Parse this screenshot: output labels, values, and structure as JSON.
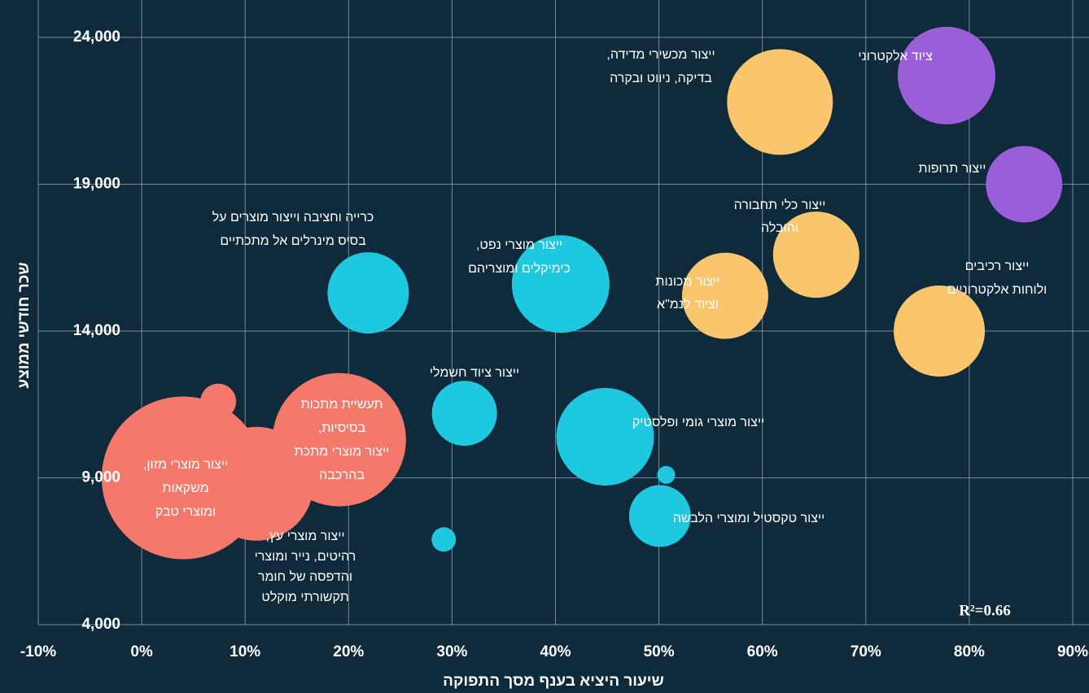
{
  "chart_data": {
    "type": "bubble",
    "x_label": "שיעור היציא בענף מסך התפוקה",
    "y_label": "שכר חודשי ממוצע",
    "annotation": "R²=0.66",
    "xlim": [
      -10,
      90
    ],
    "xticks": [
      {
        "value": -10,
        "label": "-10%"
      },
      {
        "value": 0,
        "label": "0%"
      },
      {
        "value": 10,
        "label": "10%"
      },
      {
        "value": 20,
        "label": "20%"
      },
      {
        "value": 30,
        "label": "30%"
      },
      {
        "value": 40,
        "label": "40%"
      },
      {
        "value": 50,
        "label": "50%"
      },
      {
        "value": 60,
        "label": "60%"
      },
      {
        "value": 70,
        "label": "70%"
      },
      {
        "value": 80,
        "label": "80%"
      },
      {
        "value": 90,
        "label": "90%"
      }
    ],
    "ylim": [
      4000,
      24000
    ],
    "yticks": [
      {
        "value": 4000,
        "label": "4,000"
      },
      {
        "value": 9000,
        "label": "9,000"
      },
      {
        "value": 14000,
        "label": "14,000"
      },
      {
        "value": 19000,
        "label": "19,000"
      },
      {
        "value": 24000,
        "label": "24,000"
      }
    ],
    "grid": true,
    "x": [
      4,
      7.4,
      11.1,
      19.1,
      21.9,
      40.5,
      31.2,
      44.8,
      29.2,
      50.7,
      50.1,
      61.7,
      65.2,
      56.4,
      77.1,
      77.8,
      85.3
    ],
    "values": [
      9000,
      11600,
      8800,
      10300,
      15300,
      15600,
      11200,
      10400,
      6900,
      9100,
      7700,
      21800,
      16600,
      15200,
      14000,
      22700,
      19000
    ],
    "sizes": [
      100,
      22,
      70,
      82,
      50,
      60,
      40,
      60,
      15,
      11,
      38,
      65,
      53,
      53,
      56,
      60,
      47
    ],
    "colors": [
      "#f4796b",
      "#f4796b",
      "#f4796b",
      "#f4796b",
      "#1ec8de",
      "#1ec8de",
      "#1ec8de",
      "#1ec8de",
      "#1ec8de",
      "#1ec8de",
      "#1ec8de",
      "#f9c66e",
      "#f9c66e",
      "#f9c66e",
      "#f9c66e",
      "#9b5ed9",
      "#9b5ed9"
    ],
    "labels": [
      [
        "ייצור מוצרי מזון,",
        "משקאות",
        "ומוצרי טבק"
      ],
      null,
      [
        "ייצור מוצרי עץ,",
        "רהיטים, נייר ומוצרי",
        "והדפסה של חומר",
        "תקשורתי מוקלט"
      ],
      [
        "תעשיית מתכות",
        "בסיסיות,",
        "ייצור מוצרי מתכת",
        "בהרכבה"
      ],
      [
        "כרייה וחציבה וייצור מוצרים על",
        "בסיס מינרלים אל מתכתיים"
      ],
      [
        "ייצור מוצרי נפט,",
        "כימיקלים ומוצריהם"
      ],
      [
        "ייצור ציוד חשמלי"
      ],
      [
        "ייצור מוצרי גומי ופלסטיק"
      ],
      null,
      null,
      [
        "ייצור טקסטיל ומוצרי הלבשה"
      ],
      [
        "ייצור מכשירי מדידה,",
        "בדיקה, ניווט ובקרה"
      ],
      [
        "ייצור כלי תחבורה",
        "והובלה"
      ],
      [
        "ייצור מכונות",
        "וציוד לנמ\"א"
      ],
      [
        "ייצור רכיבים",
        "ולוחות אלקטרוניים"
      ],
      [
        "ציוד אלקטרוני"
      ],
      [
        "ייצור תרופות"
      ]
    ]
  }
}
